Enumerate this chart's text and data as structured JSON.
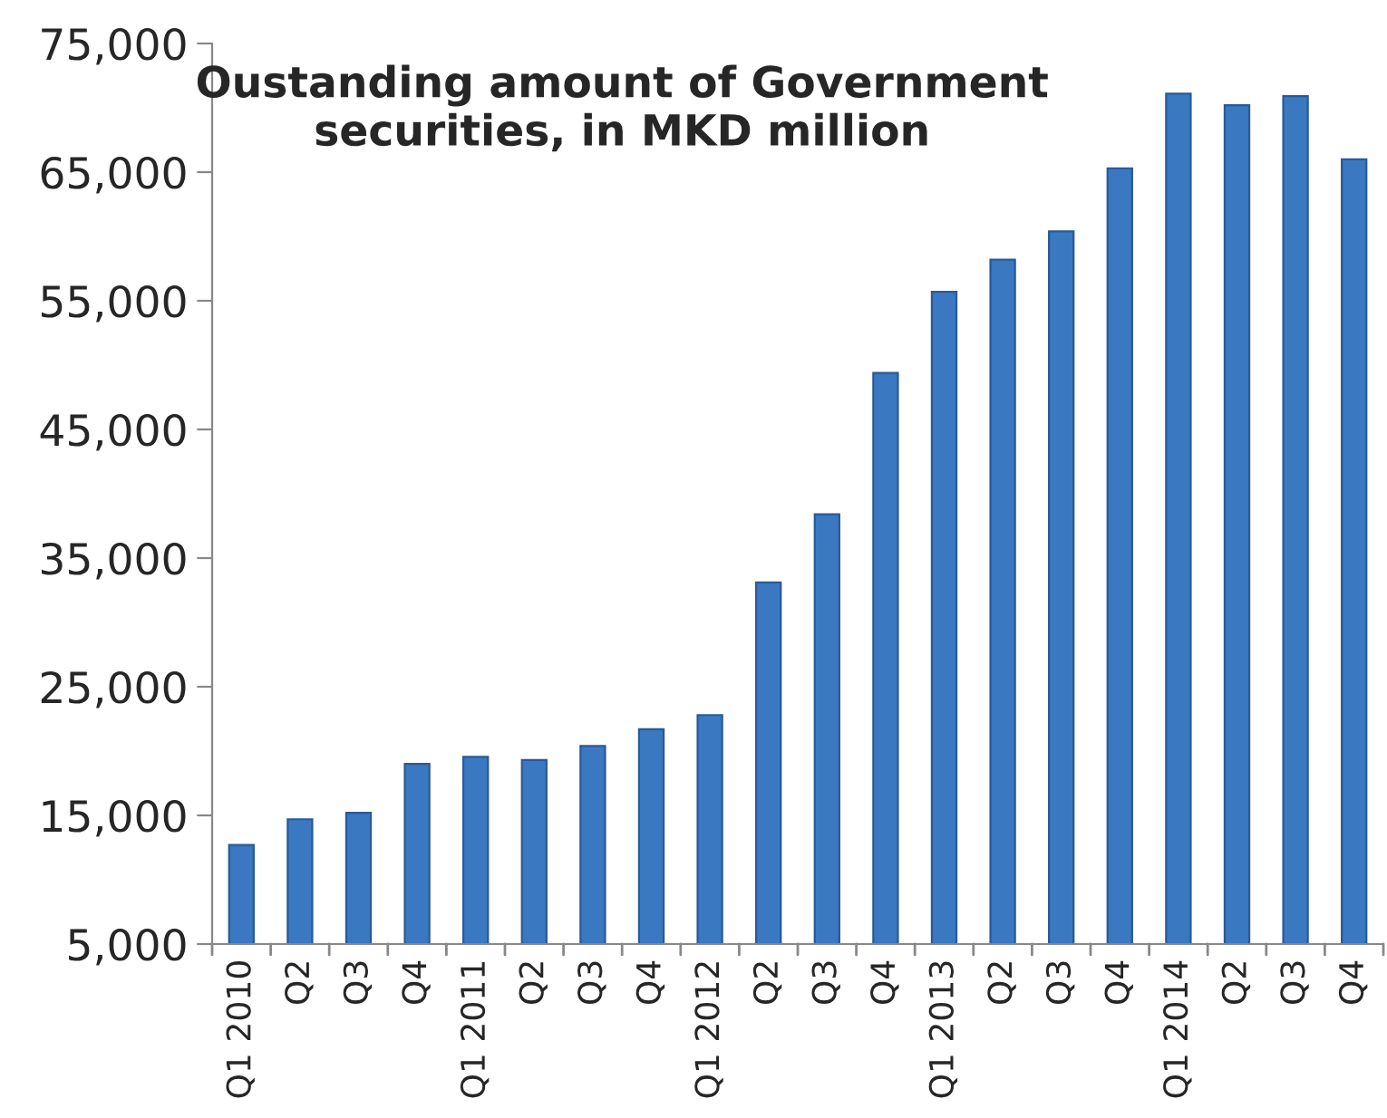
{
  "chart_data": {
    "type": "bar",
    "title": "Oustanding amount of Government\nsecurities, in MKD million",
    "categories": [
      "Q1 2010",
      "Q2",
      "Q3",
      "Q4",
      "Q1 2011",
      "Q2",
      "Q3",
      "Q4",
      "Q1 2012",
      "Q2",
      "Q3",
      "Q4",
      "Q1 2013",
      "Q2",
      "Q3",
      "Q4",
      "Q1 2014",
      "Q2",
      "Q3",
      "Q4"
    ],
    "values": [
      12700,
      14700,
      15200,
      19000,
      19550,
      19300,
      20400,
      21700,
      22800,
      33100,
      38400,
      49400,
      55700,
      58200,
      60400,
      65300,
      71100,
      70200,
      70900,
      66000
    ],
    "color": "#3a78c2",
    "ylim": [
      5000,
      75000
    ],
    "yticks": [
      {
        "value": 5000,
        "label": "5,000"
      },
      {
        "value": 15000,
        "label": "15,000"
      },
      {
        "value": 25000,
        "label": "25,000"
      },
      {
        "value": 35000,
        "label": "35,000"
      },
      {
        "value": 45000,
        "label": "45,000"
      },
      {
        "value": 55000,
        "label": "55,000"
      },
      {
        "value": 65000,
        "label": "65,000"
      },
      {
        "value": 75000,
        "label": "75,000"
      }
    ],
    "grid": false,
    "legend": false
  }
}
